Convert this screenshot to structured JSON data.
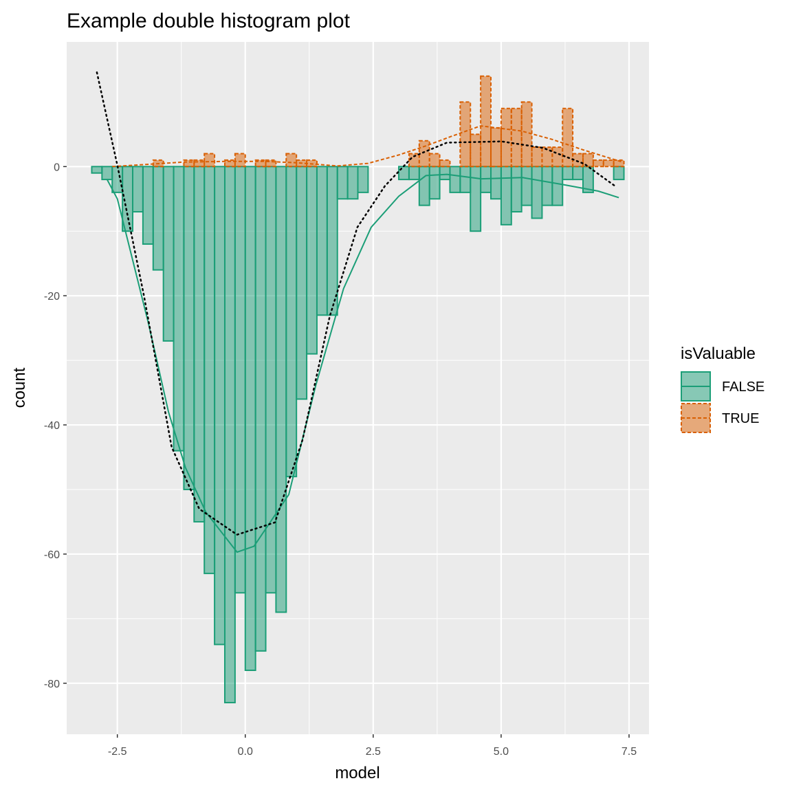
{
  "chart_data": {
    "type": "histogram",
    "title": "Example double histogram plot",
    "x_label": "model",
    "y_label": "count",
    "legend_title": "isValuable",
    "legend_position": "right",
    "grid": true,
    "xlim": [
      -3.49,
      7.89
    ],
    "ylim": [
      -87.9,
      19.3
    ],
    "xticks": [
      -2.5,
      {
        "value": 0,
        "label": "0.0"
      },
      2.5,
      {
        "value": 5,
        "label": "5.0"
      },
      7.5
    ],
    "yticks": [
      -80,
      -60,
      -40,
      -20,
      0
    ],
    "bins": [
      -3.0,
      -2.8,
      -2.6,
      -2.4,
      -2.2,
      -2.0,
      -1.8,
      -1.6,
      -1.4,
      -1.2,
      -1.0,
      -0.8,
      -0.6,
      -0.4,
      -0.2,
      0.0,
      0.2,
      0.4,
      0.6,
      0.8,
      1.0,
      1.2,
      1.4,
      1.6,
      1.8,
      2.0,
      2.2,
      2.4,
      2.6,
      2.8,
      3.0,
      3.2,
      3.4,
      3.6,
      3.8,
      4.0,
      4.2,
      4.4,
      4.6,
      4.8,
      5.0,
      5.2,
      5.4,
      5.6,
      5.8,
      6.0,
      6.2,
      6.4,
      6.6,
      6.8,
      7.0,
      7.2,
      7.4
    ],
    "series": [
      {
        "name": "FALSE",
        "color": "#1b9e77",
        "line_style": "solid",
        "values": [
          -1,
          -2,
          -4,
          -10,
          -7,
          -12,
          -16,
          -27,
          -44,
          -50,
          -55,
          -63,
          -74,
          -83,
          -66,
          -78,
          -75,
          -66,
          -69,
          -48,
          -36,
          -29,
          -23,
          -23,
          -5,
          -5,
          -4,
          0,
          0,
          0,
          -2,
          -2,
          -6,
          -5,
          -2,
          -4,
          -4,
          -10,
          -4,
          -5,
          -9,
          -7,
          -6,
          -8,
          -6,
          -6,
          -2,
          -2,
          -4,
          0,
          0,
          -2
        ],
        "density": {
          "x": [
            -2.7,
            -2.5,
            -2.31,
            -1.9,
            -1.5,
            -1.17,
            -0.77,
            -0.16,
            0.17,
            0.85,
            1.38,
            1.92,
            2.46,
            3.0,
            3.53,
            3.94,
            4.61,
            5.42,
            6.22,
            6.9,
            7.3
          ],
          "y": [
            -2,
            -5,
            -11,
            -24,
            -38,
            -46.6,
            -53.5,
            -59.7,
            -58.8,
            -50.8,
            -33.8,
            -18.9,
            -9.4,
            -4.6,
            -1.4,
            -1.2,
            -1.9,
            -1.7,
            -2.8,
            -3.8,
            -4.8
          ]
        }
      },
      {
        "name": "TRUE",
        "color": "#d95f02",
        "line_style": "dashed",
        "values": [
          0,
          0,
          0,
          0,
          0,
          0,
          1,
          0,
          0,
          1,
          1,
          2,
          0,
          1,
          2,
          0,
          1,
          1,
          0,
          2,
          1,
          1,
          0,
          0,
          0,
          0,
          0,
          0,
          0,
          0,
          0,
          2,
          4,
          2,
          1,
          0,
          10,
          5,
          14,
          6,
          9,
          9,
          10,
          3,
          3,
          3,
          9,
          2,
          2,
          1,
          1,
          1
        ],
        "density": {
          "x": [
            -2.6,
            -2.0,
            -1.2,
            -0.4,
            0.4,
            1.0,
            1.8,
            2.4,
            3.0,
            3.53,
            4.0,
            4.6,
            5.4,
            6.0,
            6.6,
            7.37
          ],
          "y": [
            0,
            0.3,
            0.7,
            0.8,
            0.8,
            0.6,
            0.1,
            0.5,
            1.8,
            3.2,
            4.6,
            6.3,
            5.5,
            4.2,
            2.6,
            0.7
          ]
        }
      }
    ],
    "overall_density": {
      "color": "#000000",
      "line_style": "dotted",
      "x": [
        -2.9,
        -2.5,
        -1.98,
        -1.44,
        -0.9,
        -0.16,
        0.58,
        1.12,
        1.65,
        2.19,
        2.73,
        3.27,
        3.94,
        5.01,
        5.82,
        6.63,
        7.26
      ],
      "y": [
        14.6,
        0.2,
        -20,
        -43.4,
        -53,
        -57,
        -55.1,
        -42.3,
        -23.2,
        -9.4,
        -3,
        1.5,
        3.7,
        3.9,
        2.9,
        0.4,
        -3.2
      ]
    }
  }
}
